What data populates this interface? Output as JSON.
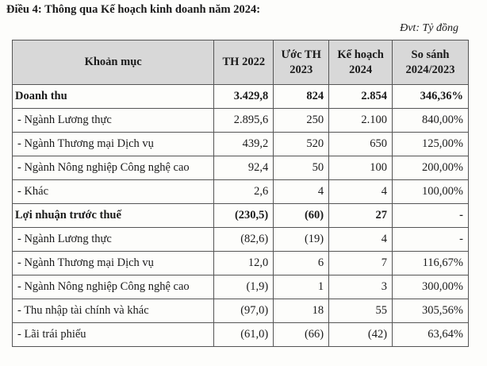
{
  "title": "Điều 4: Thông qua Kế hoạch kinh doanh năm 2024:",
  "unit": "Đvt: Tỷ đồng",
  "table": {
    "header": [
      [
        "Khoản mục"
      ],
      [
        "TH 2022"
      ],
      [
        "Ước TH",
        "2023"
      ],
      [
        "Kế hoạch",
        "2024"
      ],
      [
        "So sánh",
        "2024/2023"
      ]
    ],
    "rows": [
      [
        "Doanh thu",
        "3.429,8",
        "824",
        "2.854",
        "346,36%"
      ],
      [
        "- Ngành Lương thực",
        "2.895,6",
        "250",
        "2.100",
        "840,00%"
      ],
      [
        "- Ngành Thương mại Dịch vụ",
        "439,2",
        "520",
        "650",
        "125,00%"
      ],
      [
        "- Ngành Nông nghiệp Công nghệ cao",
        "92,4",
        "50",
        "100",
        "200,00%"
      ],
      [
        "- Khác",
        "2,6",
        "4",
        "4",
        "100,00%"
      ],
      [
        "Lợi nhuận trước thuế",
        "(230,5)",
        "(60)",
        "27",
        "-"
      ],
      [
        "- Ngành Lương thực",
        "(82,6)",
        "(19)",
        "4",
        "-"
      ],
      [
        "- Ngành Thương mại Dịch vụ",
        "12,0",
        "6",
        "7",
        "116,67%"
      ],
      [
        "- Ngành Nông nghiệp Công nghệ cao",
        "(1,9)",
        "1",
        "3",
        "300,00%"
      ],
      [
        "- Thu nhập tài chính và khác",
        "(97,0)",
        "18",
        "55",
        "305,56%"
      ],
      [
        "- Lãi trái phiếu",
        "(61,0)",
        "(66)",
        "(42)",
        "63,64%"
      ]
    ]
  }
}
